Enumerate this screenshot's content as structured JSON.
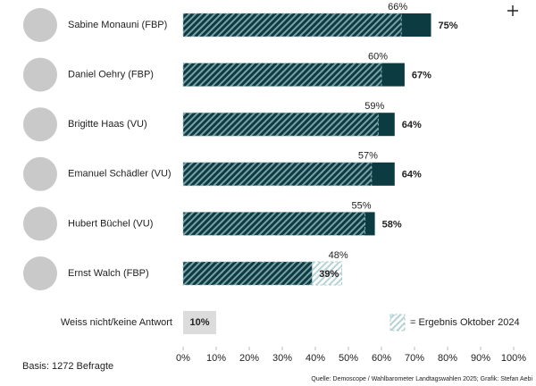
{
  "chart_data": {
    "type": "bar",
    "orientation": "horizontal",
    "categories": [
      "Sabine Monauni (FBP)",
      "Daniel Oehry (FBP)",
      "Brigitte Haas (VU)",
      "Emanuel Schädler (VU)",
      "Hubert Büchel (VU)",
      "Ernst Walch (FBP)"
    ],
    "series": [
      {
        "color": "#0d3b42",
        "values": [
          75,
          67,
          64,
          64,
          58,
          39
        ],
        "value_labels": [
          "75%",
          "67%",
          "64%",
          "64%",
          "58%",
          "39%"
        ]
      },
      {
        "name": "= Ergebnis Oktober 2024",
        "color": "#9cc3c7",
        "values": [
          66,
          60,
          59,
          57,
          55,
          48
        ],
        "value_labels": [
          "66%",
          "60%",
          "59%",
          "57%",
          "55%",
          "48%"
        ]
      }
    ],
    "extra": {
      "label": "Weiss nicht/keine Antwort",
      "value": 10,
      "value_label": "10%",
      "color": "#dcdcdc"
    },
    "xlim": [
      0,
      100
    ],
    "xticks": [
      {
        "value": 0,
        "label": "0%"
      },
      {
        "value": 10,
        "label": "10%"
      },
      {
        "value": 20,
        "label": "20%"
      },
      {
        "value": 30,
        "label": "30%"
      },
      {
        "value": 40,
        "label": "40%"
      },
      {
        "value": 50,
        "label": "50%"
      },
      {
        "value": 60,
        "label": "60%"
      },
      {
        "value": 70,
        "label": "70%"
      },
      {
        "value": 80,
        "label": "80%"
      },
      {
        "value": 90,
        "label": "90%"
      },
      {
        "value": 100,
        "label": "100%"
      }
    ],
    "note": "Basis: 1272 Befragte",
    "source": "Quelle: Demoscope / Wahlbarometer Landtagswahlen 2025;   Grafik: Stefan Aebi"
  }
}
